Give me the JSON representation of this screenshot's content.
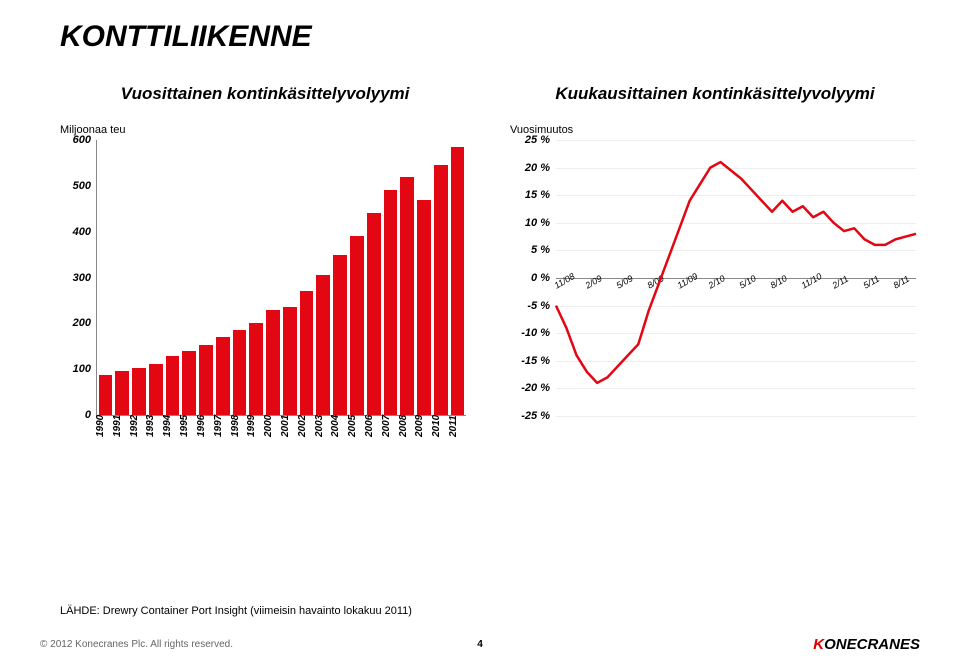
{
  "page": {
    "title": "KONTTILIIKENNE",
    "source": "LÄHDE: Drewry Container Port Insight (viimeisin havainto lokakuu 2011)",
    "copyright": "© 2012 Konecranes Plc. All rights reserved.",
    "page_number": "4",
    "brand_first": "K",
    "brand_rest": "ONECRANES"
  },
  "bar_chart": {
    "title": "Vuosittainen kontinkäsittelyvolyymi",
    "subtitle": "Miljoonaa teu",
    "type": "bar",
    "background_color": "#ffffff",
    "bar_color": "#e30613",
    "axis_color": "#888888",
    "label_color": "#000000",
    "label_fontsize": 11,
    "title_fontsize": 17,
    "ylim": [
      0,
      600
    ],
    "ytick_step": 100,
    "categories": [
      "1990",
      "1991",
      "1992",
      "1993",
      "1994",
      "1995",
      "1996",
      "1997",
      "1998",
      "1999",
      "2000",
      "2001",
      "2002",
      "2003",
      "2004",
      "2005",
      "2006",
      "2007",
      "2008",
      "2009",
      "2010",
      "2011"
    ],
    "values": [
      88,
      95,
      103,
      112,
      128,
      140,
      153,
      170,
      185,
      200,
      230,
      235,
      270,
      305,
      350,
      390,
      440,
      490,
      520,
      470,
      545,
      585
    ]
  },
  "line_chart": {
    "title": "Kuukausittainen kontinkäsittelyvolyymi",
    "subtitle": "Vuosimuutos",
    "type": "line",
    "background_color": "#ffffff",
    "line_color": "#e30613",
    "line_width": 2.5,
    "axis_color": "#888888",
    "grid_color": "#eeeeee",
    "label_fontsize": 11,
    "title_fontsize": 17,
    "ylim": [
      -25,
      25
    ],
    "ytick_step": 5,
    "x_tick_labels": [
      "11/08",
      "2/09",
      "5/09",
      "8/09",
      "11/09",
      "2/10",
      "5/10",
      "8/10",
      "11/10",
      "2/11",
      "5/11",
      "8/11"
    ],
    "x_tick_indices": [
      0,
      3,
      6,
      9,
      12,
      15,
      18,
      21,
      24,
      27,
      30,
      33
    ],
    "values": [
      -5,
      -9,
      -14,
      -17,
      -19,
      -18,
      -16,
      -14,
      -12,
      -6,
      -1,
      4,
      9,
      14,
      17,
      20,
      21,
      19.5,
      18,
      16,
      14,
      12,
      14,
      12,
      13,
      11,
      12,
      10,
      8.5,
      9,
      7,
      6,
      6,
      7,
      7.5,
      8
    ]
  }
}
